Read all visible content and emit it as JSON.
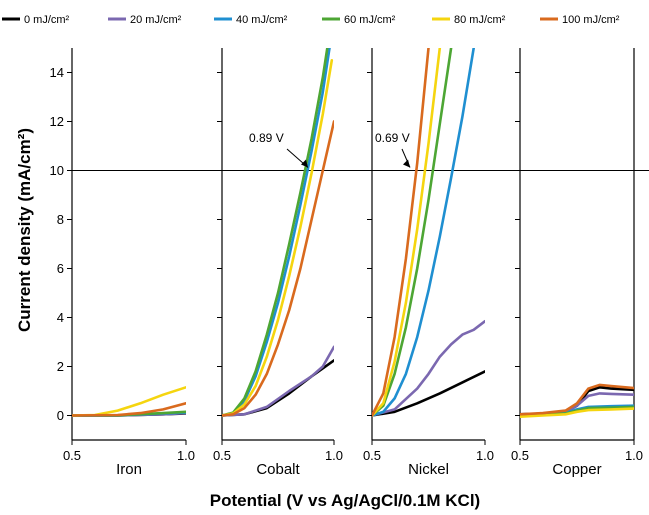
{
  "chart_data": {
    "type": "line",
    "xlabel": "Potential (V vs Ag/AgCl/0.1M KCl)",
    "ylabel": "Current density (mA/cm²)",
    "xlim": [
      0.5,
      1.0
    ],
    "ylim": [
      -1,
      15
    ],
    "x_ticks": [
      0.5,
      1.0
    ],
    "y_ticks": [
      0,
      2,
      4,
      6,
      8,
      10,
      12,
      14
    ],
    "legend_position": "top",
    "reference_line": {
      "y": 10
    },
    "series_meta": [
      {
        "name": "0 mJ/cm²",
        "color": "#000000"
      },
      {
        "name": "20 mJ/cm²",
        "color": "#7B68B0"
      },
      {
        "name": "40 mJ/cm²",
        "color": "#1F8FD1"
      },
      {
        "name": "60 mJ/cm²",
        "color": "#4DA634"
      },
      {
        "name": "80 mJ/cm²",
        "color": "#F5D50F"
      },
      {
        "name": "100 mJ/cm²",
        "color": "#D96A1E"
      }
    ],
    "panels": [
      {
        "label": "Iron",
        "series": [
          {
            "name": "0 mJ/cm²",
            "x": [
              0.5,
              0.7,
              0.9,
              1.0
            ],
            "y": [
              0,
              0,
              0.05,
              0.08
            ]
          },
          {
            "name": "20 mJ/cm²",
            "x": [
              0.5,
              0.7,
              0.9,
              1.0
            ],
            "y": [
              0,
              0,
              0.05,
              0.1
            ]
          },
          {
            "name": "40 mJ/cm²",
            "x": [
              0.5,
              0.7,
              0.9,
              1.0
            ],
            "y": [
              0,
              0.01,
              0.08,
              0.12
            ]
          },
          {
            "name": "60 mJ/cm²",
            "x": [
              0.5,
              0.7,
              0.9,
              1.0
            ],
            "y": [
              0,
              0.01,
              0.1,
              0.15
            ]
          },
          {
            "name": "80 mJ/cm²",
            "x": [
              0.5,
              0.6,
              0.7,
              0.8,
              0.9,
              1.0
            ],
            "y": [
              0,
              0.02,
              0.2,
              0.5,
              0.85,
              1.15
            ]
          },
          {
            "name": "100 mJ/cm²",
            "x": [
              0.5,
              0.7,
              0.8,
              0.9,
              1.0
            ],
            "y": [
              0,
              0.02,
              0.1,
              0.25,
              0.5
            ]
          }
        ]
      },
      {
        "label": "Cobalt",
        "annotation": "0.89 V",
        "series": [
          {
            "name": "0 mJ/cm²",
            "x": [
              0.5,
              0.6,
              0.7,
              0.8,
              0.9,
              1.0
            ],
            "y": [
              0,
              0.05,
              0.3,
              0.9,
              1.6,
              2.25
            ]
          },
          {
            "name": "20 mJ/cm²",
            "x": [
              0.5,
              0.6,
              0.7,
              0.8,
              0.9,
              0.95,
              1.0
            ],
            "y": [
              0,
              0.05,
              0.35,
              1.0,
              1.6,
              2.0,
              2.8
            ]
          },
          {
            "name": "40 mJ/cm²",
            "x": [
              0.5,
              0.55,
              0.6,
              0.65,
              0.7,
              0.75,
              0.8,
              0.85,
              0.9,
              0.95,
              0.98
            ],
            "y": [
              0,
              0.1,
              0.6,
              1.6,
              3.0,
              4.6,
              6.5,
              8.6,
              10.8,
              13.2,
              15
            ]
          },
          {
            "name": "60 mJ/cm²",
            "x": [
              0.5,
              0.55,
              0.6,
              0.65,
              0.7,
              0.75,
              0.8,
              0.85,
              0.9,
              0.95,
              0.97
            ],
            "y": [
              0,
              0.12,
              0.7,
              1.8,
              3.3,
              5.0,
              7.0,
              9.1,
              11.3,
              13.8,
              15
            ]
          },
          {
            "name": "80 mJ/cm²",
            "x": [
              0.5,
              0.55,
              0.6,
              0.65,
              0.7,
              0.75,
              0.8,
              0.85,
              0.9,
              0.95,
              0.99
            ],
            "y": [
              0,
              0.08,
              0.45,
              1.2,
              2.4,
              3.9,
              5.7,
              7.7,
              9.9,
              12.3,
              14.5
            ]
          },
          {
            "name": "100 mJ/cm²",
            "x": [
              0.5,
              0.55,
              0.6,
              0.65,
              0.7,
              0.75,
              0.8,
              0.85,
              0.9,
              0.95,
              1.0
            ],
            "y": [
              0,
              0.05,
              0.3,
              0.85,
              1.7,
              2.9,
              4.3,
              6.0,
              8.0,
              10.0,
              12.0
            ]
          }
        ]
      },
      {
        "label": "Nickel",
        "annotation": "0.69 V",
        "series": [
          {
            "name": "0 mJ/cm²",
            "x": [
              0.5,
              0.6,
              0.7,
              0.8,
              0.9,
              1.0
            ],
            "y": [
              0,
              0.15,
              0.5,
              0.9,
              1.35,
              1.8
            ]
          },
          {
            "name": "20 mJ/cm²",
            "x": [
              0.5,
              0.6,
              0.7,
              0.75,
              0.8,
              0.85,
              0.9,
              0.95,
              1.0
            ],
            "y": [
              0,
              0.25,
              1.1,
              1.7,
              2.4,
              2.9,
              3.3,
              3.5,
              3.85
            ]
          },
          {
            "name": "40 mJ/cm²",
            "x": [
              0.5,
              0.55,
              0.6,
              0.65,
              0.7,
              0.75,
              0.8,
              0.85,
              0.9,
              0.95
            ],
            "y": [
              0,
              0.15,
              0.7,
              1.7,
              3.2,
              5.1,
              7.3,
              9.7,
              12.2,
              15
            ]
          },
          {
            "name": "60 mJ/cm²",
            "x": [
              0.5,
              0.55,
              0.6,
              0.65,
              0.7,
              0.75,
              0.8,
              0.85
            ],
            "y": [
              0,
              0.4,
              1.7,
              3.6,
              6.0,
              8.8,
              11.9,
              15
            ]
          },
          {
            "name": "80 mJ/cm²",
            "x": [
              0.5,
              0.55,
              0.6,
              0.65,
              0.7,
              0.75,
              0.8
            ],
            "y": [
              0,
              0.5,
              2.2,
              4.6,
              7.6,
              11.1,
              15
            ]
          },
          {
            "name": "100 mJ/cm²",
            "x": [
              0.5,
              0.55,
              0.6,
              0.65,
              0.7,
              0.75
            ],
            "y": [
              0,
              0.9,
              3.2,
              6.4,
              10.3,
              15
            ]
          }
        ]
      },
      {
        "label": "Copper",
        "series": [
          {
            "name": "0 mJ/cm²",
            "x": [
              0.5,
              0.6,
              0.7,
              0.75,
              0.8,
              0.85,
              0.9,
              1.0
            ],
            "y": [
              0.05,
              0.08,
              0.15,
              0.4,
              1.0,
              1.15,
              1.1,
              1.05
            ]
          },
          {
            "name": "20 mJ/cm²",
            "x": [
              0.5,
              0.6,
              0.7,
              0.75,
              0.8,
              0.85,
              0.9,
              1.0
            ],
            "y": [
              0.05,
              0.08,
              0.15,
              0.4,
              0.8,
              0.9,
              0.88,
              0.85
            ]
          },
          {
            "name": "40 mJ/cm²",
            "x": [
              0.5,
              0.6,
              0.7,
              0.75,
              0.8,
              0.9,
              1.0
            ],
            "y": [
              0.02,
              0.05,
              0.1,
              0.25,
              0.35,
              0.38,
              0.4
            ]
          },
          {
            "name": "60 mJ/cm²",
            "x": [
              0.5,
              0.6,
              0.7,
              0.75,
              0.8,
              0.9,
              1.0
            ],
            "y": [
              0.0,
              0.03,
              0.08,
              0.2,
              0.3,
              0.32,
              0.35
            ]
          },
          {
            "name": "80 mJ/cm²",
            "x": [
              0.5,
              0.6,
              0.7,
              0.75,
              0.8,
              0.9,
              1.0
            ],
            "y": [
              -0.05,
              0.0,
              0.05,
              0.15,
              0.22,
              0.25,
              0.28
            ]
          },
          {
            "name": "100 mJ/cm²",
            "x": [
              0.5,
              0.6,
              0.7,
              0.75,
              0.8,
              0.85,
              0.9,
              1.0
            ],
            "y": [
              0.05,
              0.1,
              0.2,
              0.5,
              1.1,
              1.25,
              1.2,
              1.12
            ]
          }
        ]
      }
    ]
  }
}
